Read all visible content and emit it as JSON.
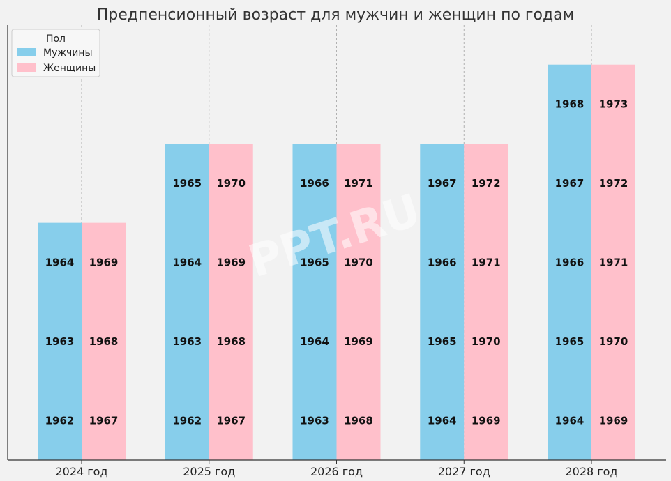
{
  "chart_data": {
    "type": "bar",
    "title": "Предпенсионный возраст для мужчин и женщин по годам",
    "categories": [
      "2024 год",
      "2025 год",
      "2026 год",
      "2027 год",
      "2028 год"
    ],
    "legend": {
      "title": "Пол",
      "placement": "top-left"
    },
    "series": [
      {
        "name": "Мужчины",
        "color": "#87ceeb",
        "values": [
          3,
          4,
          4,
          4,
          5
        ],
        "labels": [
          [
            "1962",
            "1963",
            "1964"
          ],
          [
            "1962",
            "1963",
            "1964",
            "1965"
          ],
          [
            "1963",
            "1964",
            "1965",
            "1966"
          ],
          [
            "1964",
            "1965",
            "1966",
            "1967"
          ],
          [
            "1964",
            "1965",
            "1966",
            "1967",
            "1968"
          ]
        ]
      },
      {
        "name": "Женщины",
        "color": "#ffc0cb",
        "values": [
          3,
          4,
          4,
          4,
          5
        ],
        "labels": [
          [
            "1967",
            "1968",
            "1969"
          ],
          [
            "1967",
            "1968",
            "1969",
            "1970"
          ],
          [
            "1968",
            "1969",
            "1970",
            "1971"
          ],
          [
            "1969",
            "1970",
            "1971",
            "1972"
          ],
          [
            "1969",
            "1970",
            "1971",
            "1972",
            "1973"
          ]
        ]
      }
    ],
    "ylim": [
      0,
      5.5
    ],
    "grid": "vertical dashed",
    "watermark": "PPT.RU"
  }
}
